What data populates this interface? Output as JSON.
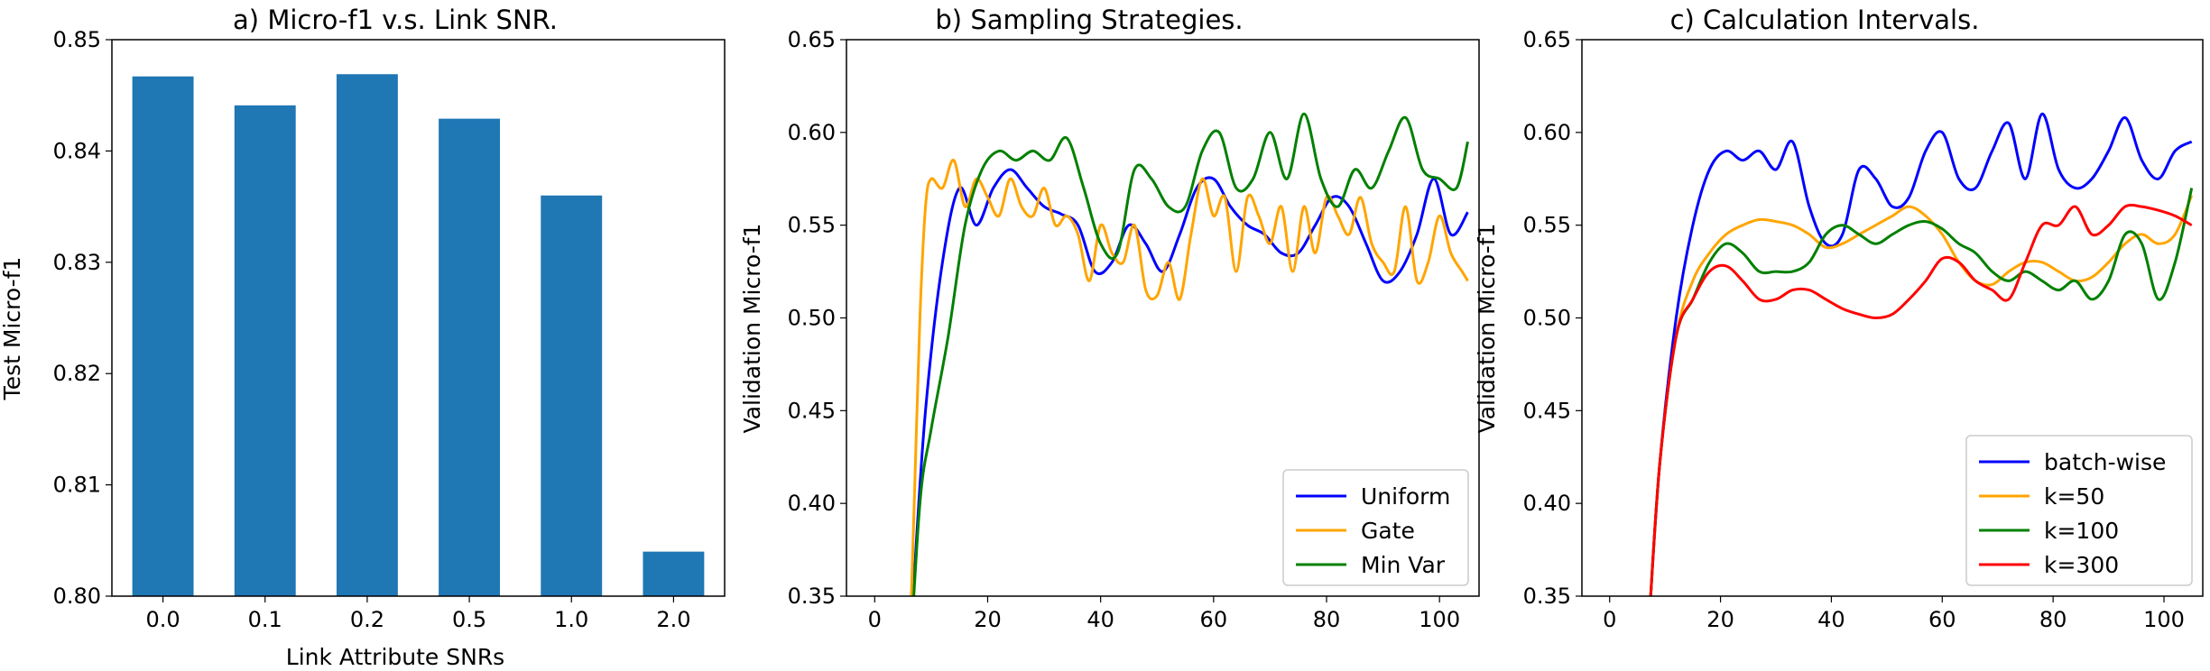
{
  "chart_data": [
    {
      "type": "bar",
      "title": "a) Micro-f1 v.s. Link SNR.",
      "xlabel": "Link Attribute SNRs",
      "ylabel": "Test Micro-f1",
      "categories": [
        "0.0",
        "0.1",
        "0.2",
        "0.5",
        "1.0",
        "2.0"
      ],
      "values": [
        0.8467,
        0.8441,
        0.8469,
        0.8429,
        0.836,
        0.804
      ],
      "ylim": [
        0.8,
        0.85
      ],
      "yticks": [
        "0.80",
        "0.81",
        "0.82",
        "0.83",
        "0.84",
        "0.85"
      ],
      "color": "#1f77b4"
    },
    {
      "type": "line",
      "title": "b) Sampling Strategies.",
      "xlabel": "",
      "ylabel": "Validation Micro-f1",
      "xlim": [
        -5,
        107
      ],
      "ylim": [
        0.35,
        0.65
      ],
      "xticks": [
        "0",
        "20",
        "40",
        "60",
        "80",
        "100"
      ],
      "yticks": [
        "0.35",
        "0.40",
        "0.45",
        "0.50",
        "0.55",
        "0.60",
        "0.65"
      ],
      "legend_position": "bottom-right",
      "series": [
        {
          "name": "Uniform",
          "color": "#0000ff",
          "x": [
            6,
            7,
            9,
            12,
            15,
            18,
            21,
            24,
            27,
            30,
            33,
            36,
            39,
            42,
            45,
            48,
            51,
            54,
            57,
            60,
            63,
            66,
            69,
            72,
            75,
            78,
            81,
            84,
            87,
            90,
            93,
            96,
            99,
            102,
            105
          ],
          "y": [
            0.3,
            0.36,
            0.45,
            0.53,
            0.57,
            0.55,
            0.57,
            0.58,
            0.57,
            0.56,
            0.556,
            0.55,
            0.525,
            0.53,
            0.55,
            0.54,
            0.525,
            0.545,
            0.57,
            0.575,
            0.56,
            0.55,
            0.545,
            0.535,
            0.535,
            0.55,
            0.565,
            0.56,
            0.54,
            0.52,
            0.525,
            0.545,
            0.575,
            0.545,
            0.557
          ]
        },
        {
          "name": "Gate",
          "color": "#ffa500",
          "x": [
            6,
            7,
            8,
            9,
            10,
            12,
            14,
            16,
            18,
            20,
            22,
            24,
            26,
            28,
            30,
            32,
            34,
            36,
            38,
            40,
            42,
            44,
            46,
            48,
            50,
            52,
            54,
            56,
            58,
            60,
            62,
            64,
            66,
            68,
            70,
            72,
            74,
            76,
            78,
            80,
            82,
            84,
            86,
            88,
            90,
            92,
            94,
            96,
            98,
            100,
            102,
            104,
            105
          ],
          "y": [
            0.3,
            0.4,
            0.5,
            0.56,
            0.575,
            0.57,
            0.585,
            0.56,
            0.575,
            0.565,
            0.555,
            0.575,
            0.56,
            0.555,
            0.57,
            0.55,
            0.555,
            0.545,
            0.52,
            0.55,
            0.535,
            0.53,
            0.55,
            0.515,
            0.512,
            0.53,
            0.51,
            0.545,
            0.575,
            0.555,
            0.565,
            0.525,
            0.565,
            0.555,
            0.54,
            0.56,
            0.525,
            0.56,
            0.535,
            0.565,
            0.555,
            0.545,
            0.565,
            0.54,
            0.53,
            0.525,
            0.56,
            0.52,
            0.53,
            0.555,
            0.535,
            0.525,
            0.52
          ]
        },
        {
          "name": "Min Var",
          "color": "#008000",
          "x": [
            6,
            8,
            10,
            13,
            16,
            19,
            22,
            25,
            28,
            31,
            34,
            37,
            40,
            43,
            46,
            49,
            52,
            55,
            58,
            61,
            64,
            67,
            70,
            73,
            76,
            79,
            82,
            85,
            88,
            91,
            94,
            97,
            100,
            103,
            105
          ],
          "y": [
            0.3,
            0.4,
            0.44,
            0.49,
            0.55,
            0.58,
            0.59,
            0.585,
            0.59,
            0.585,
            0.597,
            0.57,
            0.54,
            0.535,
            0.58,
            0.575,
            0.56,
            0.56,
            0.59,
            0.6,
            0.57,
            0.575,
            0.6,
            0.575,
            0.61,
            0.575,
            0.56,
            0.58,
            0.57,
            0.59,
            0.608,
            0.58,
            0.575,
            0.57,
            0.595
          ]
        }
      ]
    },
    {
      "type": "line",
      "title": "c) Calculation Intervals.",
      "xlabel": "",
      "ylabel": "Validation Micro-f1",
      "xlim": [
        -5,
        107
      ],
      "ylim": [
        0.35,
        0.65
      ],
      "xticks": [
        "0",
        "20",
        "40",
        "60",
        "80",
        "100"
      ],
      "yticks": [
        "0.35",
        "0.40",
        "0.45",
        "0.50",
        "0.55",
        "0.60",
        "0.65"
      ],
      "legend_position": "bottom-right",
      "series": [
        {
          "name": "batch-wise",
          "color": "#0000ff",
          "x": [
            7,
            9,
            12,
            15,
            18,
            21,
            24,
            27,
            30,
            33,
            36,
            39,
            42,
            45,
            48,
            51,
            54,
            57,
            60,
            63,
            66,
            69,
            72,
            75,
            78,
            81,
            84,
            87,
            90,
            93,
            96,
            99,
            102,
            105
          ],
          "y": [
            0.33,
            0.42,
            0.5,
            0.55,
            0.58,
            0.59,
            0.585,
            0.59,
            0.58,
            0.595,
            0.56,
            0.54,
            0.545,
            0.58,
            0.575,
            0.56,
            0.565,
            0.59,
            0.6,
            0.575,
            0.57,
            0.59,
            0.605,
            0.575,
            0.61,
            0.58,
            0.57,
            0.575,
            0.59,
            0.608,
            0.585,
            0.575,
            0.59,
            0.595
          ]
        },
        {
          "name": "k=50",
          "color": "#ffa500",
          "x": [
            7,
            9,
            12,
            15,
            18,
            21,
            24,
            27,
            30,
            33,
            36,
            39,
            42,
            45,
            48,
            51,
            54,
            57,
            60,
            63,
            66,
            69,
            72,
            75,
            78,
            81,
            84,
            87,
            90,
            93,
            96,
            99,
            102,
            105
          ],
          "y": [
            0.33,
            0.42,
            0.49,
            0.52,
            0.535,
            0.545,
            0.55,
            0.553,
            0.552,
            0.55,
            0.545,
            0.538,
            0.54,
            0.545,
            0.55,
            0.555,
            0.56,
            0.555,
            0.545,
            0.53,
            0.52,
            0.518,
            0.525,
            0.53,
            0.53,
            0.525,
            0.52,
            0.522,
            0.53,
            0.54,
            0.545,
            0.54,
            0.545,
            0.566
          ]
        },
        {
          "name": "k=100",
          "color": "#008000",
          "x": [
            7,
            9,
            12,
            15,
            18,
            21,
            24,
            27,
            30,
            33,
            36,
            39,
            42,
            45,
            48,
            51,
            54,
            57,
            60,
            63,
            66,
            69,
            72,
            75,
            78,
            81,
            84,
            87,
            90,
            93,
            96,
            99,
            102,
            105
          ],
          "y": [
            0.33,
            0.42,
            0.49,
            0.51,
            0.53,
            0.54,
            0.535,
            0.525,
            0.525,
            0.525,
            0.53,
            0.545,
            0.55,
            0.545,
            0.54,
            0.545,
            0.55,
            0.552,
            0.548,
            0.54,
            0.535,
            0.525,
            0.52,
            0.525,
            0.52,
            0.515,
            0.52,
            0.51,
            0.52,
            0.545,
            0.54,
            0.51,
            0.53,
            0.57
          ]
        },
        {
          "name": "k=300",
          "color": "#ff0000",
          "x": [
            7,
            9,
            12,
            15,
            18,
            21,
            24,
            27,
            30,
            33,
            36,
            39,
            42,
            45,
            48,
            51,
            54,
            57,
            60,
            63,
            66,
            69,
            72,
            75,
            78,
            81,
            84,
            87,
            90,
            93,
            96,
            99,
            102,
            105
          ],
          "y": [
            0.33,
            0.42,
            0.49,
            0.51,
            0.525,
            0.528,
            0.52,
            0.51,
            0.51,
            0.515,
            0.515,
            0.51,
            0.505,
            0.502,
            0.5,
            0.502,
            0.51,
            0.52,
            0.532,
            0.53,
            0.52,
            0.515,
            0.51,
            0.53,
            0.55,
            0.55,
            0.56,
            0.545,
            0.55,
            0.56,
            0.56,
            0.558,
            0.555,
            0.55
          ]
        }
      ]
    }
  ]
}
